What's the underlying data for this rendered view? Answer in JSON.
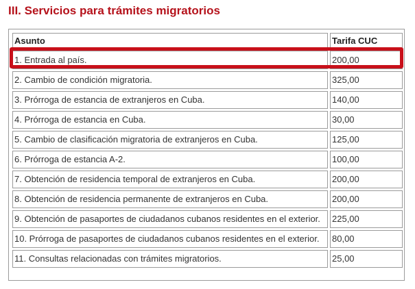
{
  "header": {
    "title": "III. Servicios para trámites migratorios"
  },
  "table": {
    "columns": [
      "Asunto",
      "Tarifa CUC"
    ],
    "rows": [
      [
        "1. Entrada al país.",
        "200,00"
      ],
      [
        "2. Cambio de condición migratoria.",
        "325,00"
      ],
      [
        "3. Prórroga de estancia de extranjeros en Cuba.",
        "140,00"
      ],
      [
        "4. Prórroga de estancia en Cuba.",
        "30,00"
      ],
      [
        "5. Cambio de clasificación migratoria de extranjeros en Cuba.",
        "125,00"
      ],
      [
        "6. Prórroga de estancia A-2.",
        "100,00"
      ],
      [
        "7. Obtención de residencia temporal de extranjeros en Cuba.",
        "200,00"
      ],
      [
        "8. Obtención de residencia permanente de extranjeros en Cuba.",
        "200,00"
      ],
      [
        "9. Obtención de pasaportes de ciudadanos cubanos residentes en el exterior.",
        "225,00"
      ],
      [
        "10. Prórroga de pasaportes de ciudadanos cubanos residentes en el exterior.",
        "80,00"
      ],
      [
        "11. Consultas relacionadas con trámites migratorios.",
        "25,00"
      ]
    ]
  }
}
